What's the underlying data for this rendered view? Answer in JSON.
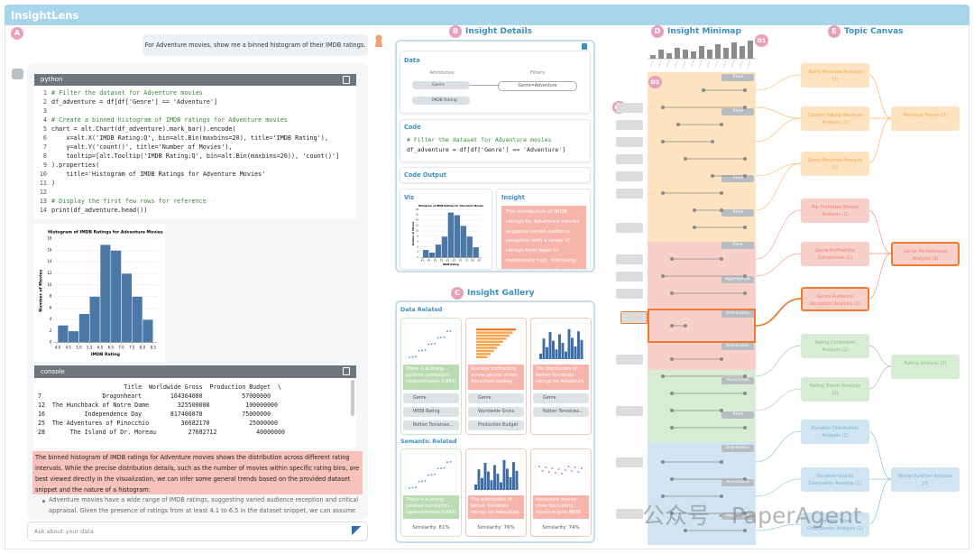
{
  "app": {
    "logo": "InsightLens"
  },
  "panel_a": {
    "badge": "A",
    "user_message": "For Adventure movies, show me a binned histogram of their IMDB ratings.",
    "code_lang": "python",
    "code_lines": [
      {
        "n": "1",
        "code": "# Filter the dataset for Adventure movies"
      },
      {
        "n": "2",
        "code": "df_adventure = df[df['Genre'] == 'Adventure']"
      },
      {
        "n": "3"
      },
      {
        "n": "4",
        "code": "# Create a binned histogram of IMDB ratings for Adventure movies"
      },
      {
        "n": "5",
        "code": "chart = alt.Chart(df_adventure).mark_bar().encode("
      },
      {
        "n": "6",
        "code": "    x=alt.X('IMDB Rating:Q', bin=alt.Bin(maxbins=20), title='IMDB Rating'),"
      },
      {
        "n": "7",
        "code": "    y=alt.Y('count()', title='Number of Movies'),"
      },
      {
        "n": "8",
        "code": "    tooltip=[alt.Tooltip('IMDB Rating:Q', bin=alt.Bin(maxbins=20)), 'count()']"
      },
      {
        "n": "9",
        "code": ").properties("
      },
      {
        "n": "10",
        "code": "    title='Histogram of IMDB Ratings for Adventure Movies'"
      },
      {
        "n": "11",
        "code": ")"
      },
      {
        "n": "12"
      },
      {
        "n": "13",
        "code": "# Display the first few rows for reference"
      },
      {
        "n": "14",
        "code": "print(df_adventure.head())"
      }
    ],
    "histogram": {
      "type": "histogram",
      "title": "Histogram of IMDB Ratings for Adventure Movies",
      "x_label": "IMDB Rating",
      "y_label": "Number of Movies",
      "bins": [
        4.0,
        4.5,
        5.0,
        5.5,
        6.0,
        6.5,
        7.0,
        7.5,
        8.0,
        8.5
      ],
      "counts": [
        3,
        2,
        5,
        8,
        17,
        16,
        12,
        8,
        4
      ],
      "color": "#4c78a8",
      "xlim": [
        3.8,
        8.7
      ],
      "xticks": [
        {
          "value": 4,
          "label": "4.0"
        },
        {
          "value": 4.5,
          "label": "4.5"
        },
        {
          "value": 5,
          "label": "5.0"
        },
        {
          "value": 5.5,
          "label": "5.5"
        },
        {
          "value": 6,
          "label": "6.0"
        },
        {
          "value": 6.5,
          "label": "6.5"
        },
        {
          "value": 7,
          "label": "7.0"
        },
        {
          "value": 7.5,
          "label": "7.5"
        },
        {
          "value": 8,
          "label": "8.0"
        },
        {
          "value": 8.5,
          "label": "8.5"
        }
      ],
      "ylim": [
        0,
        18
      ],
      "yticks": [
        0,
        2,
        4,
        6,
        8,
        10,
        12,
        14,
        16,
        18
      ],
      "grid": true
    },
    "console_title": "console",
    "console_lines": [
      "                        Title  Worldwide Gross  Production Budget  \\",
      "7                 Dragonheart        104364680           57000000",
      "12  The Hunchback of Notre Dame        325500000          100000000",
      "16           Independence Day        817400878           75000000",
      "25  The Adventures of Pinocchio         36682170           25000000",
      "28       The Island of Dr. Moreau         27682712           40000000"
    ],
    "summary": "The binned histogram of IMDB ratings for Adventure movies shows the distribution across different rating intervals. While the precise distribution details, such as the number of movies within specific rating bins, are best viewed directly in the visualization, we can infer some general trends based on the provided dataset snippet and the nature of a histogram:",
    "bullet": "Adventure movies have a wide range of IMDB ratings, suggesting varied audience reception and critical appraisal. Given the presence of ratings from at least 4.1 to 6.5 in the dataset snippet, we can assume a",
    "input_placeholder": "Ask about your data"
  },
  "panel_b": {
    "badge": "B",
    "title": "Insight Details",
    "data_section": "Data",
    "attributes_label": "Attributes",
    "filters_label": "Filters",
    "attributes": [
      "Genre",
      "IMDB Rating"
    ],
    "filter": "Genre=Adventure",
    "code_section": "Code",
    "code_lines": [
      "# Filter the dataset for Adventure movies",
      "df_adventure = df[df['Genre'] == 'Adventure']"
    ],
    "code_output_section": "Code Output",
    "vis_section": "Vis",
    "insight_section": "Insight",
    "insight_text": "The distribution of IMDB ratings for Adventure movies suggests varied audience reception with a range of ratings from lower to moderately high, indicating the genre's popularity and"
  },
  "panel_c": {
    "badge": "C",
    "title": "Insight Gallery",
    "data_related": "Data Related",
    "data_cards": [
      {
        "text": "There is a strong positive correlation (approximately 0.843)",
        "tags": [
          "Genre",
          "IMDB Rating",
          "Rotten Tomatoes..."
        ]
      },
      {
        "text": "Average profitability across genres shows Adventure leading",
        "tags": [
          "Genre",
          "Worldwide Gross",
          "Production Budget"
        ]
      },
      {
        "text": "The distribution of Rotten Tomatoes ratings for Adventure",
        "tags": [
          "Genre",
          "Rotten Tomatoes..."
        ]
      }
    ],
    "semantic_related": "Semantic Related",
    "semantic_cards": [
      {
        "text": "There is a strong positive correlation (approximately 0.843)",
        "similarity": "Similarity: 81%"
      },
      {
        "text": "The distribution of Rotten Tomatoes ratings for Adventure",
        "similarity": "Similarity: 76%"
      },
      {
        "text": "Adventure movies show fluctuating trends in both IMDB",
        "similarity": "Similarity: 74%"
      }
    ]
  },
  "panel_d": {
    "badge": "D",
    "title": "Insight Minimap",
    "markers": [
      "D1",
      "D2",
      "D3"
    ],
    "overview_counts": [
      2,
      5,
      3,
      6,
      5,
      4,
      7,
      5,
      8,
      6,
      9,
      7,
      10
    ],
    "overview_ylim": [
      0,
      10
    ],
    "tags": [
      "Trend",
      "Trend",
      "Trend",
      "Trend",
      "Rank",
      "Aggregation",
      "Distribution",
      "Distribution",
      "Association",
      "Trend",
      "Distribution",
      "Association",
      "Aggregation"
    ]
  },
  "panel_e": {
    "badge": "E",
    "title": "Topic Canvas",
    "groups": [
      {
        "color": "#f5a54a",
        "fill": "#fde3bf",
        "parent": "Revenue Trends (3)",
        "children": [
          "Yearly Revenue Analysis (2)",
          "Content Rating Revenue Analysis (1)",
          "Genre Revenue Analysis (2)"
        ]
      },
      {
        "color": "#ec7d6c",
        "fill": "#f8d0ca",
        "parent": "Genre Performance Analysis (4)",
        "children": [
          "Top Profitable Movies Analysis (1)",
          "Genre Profitability Comparison (1)",
          "Genre Audience Reception Analysis (2)"
        ]
      },
      {
        "color": "#86bd7f",
        "fill": "#d8ebd4",
        "parent": "Rating Analysis (2)",
        "children": [
          "Rating Correlation Analysis (1)",
          "Rating Trends Analysis (1)"
        ]
      },
      {
        "color": "#6eafd6",
        "fill": "#d0e5f1",
        "parent": "Movie Duration Analysis (3)",
        "children": [
          "Duration Distribution Analysis (1)",
          "Duration-Quality Correlation Analysis (1)",
          "Creative Team Contribution Analysis (1)"
        ]
      }
    ]
  },
  "watermark": "公众号 · PaperAgent"
}
